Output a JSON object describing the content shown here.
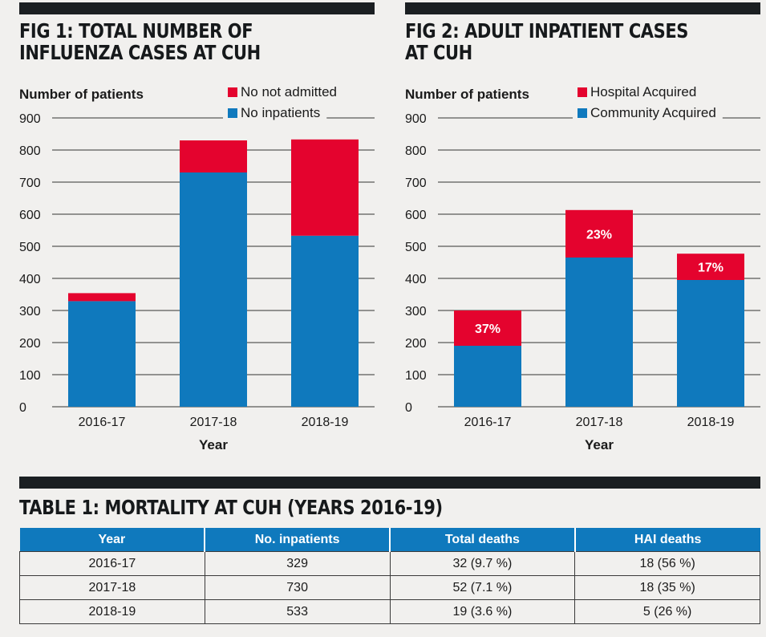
{
  "fig1": {
    "title": "FIG 1: TOTAL NUMBER OF\nINFLUENZA CASES AT CUH",
    "ylabel": "Number of patients",
    "legend": [
      {
        "label": "No not admitted",
        "color": "#e4032e"
      },
      {
        "label": "No inpatients",
        "color": "#0f79bd"
      }
    ]
  },
  "fig2": {
    "title": "FIG 2: ADULT INPATIENT CASES\nAT CUH",
    "ylabel": "Number of patients",
    "legend": [
      {
        "label": "Hospital Acquired",
        "color": "#e4032e"
      },
      {
        "label": "Community Acquired",
        "color": "#0f79bd"
      }
    ]
  },
  "colors": {
    "red": "#e4032e",
    "blue": "#0f79bd",
    "dark": "#1b1f22"
  },
  "chart_data": [
    {
      "type": "bar",
      "stacked": true,
      "title": "FIG 1: TOTAL NUMBER OF INFLUENZA CASES AT CUH",
      "xlabel": "Year",
      "ylabel": "Number of patients",
      "ylim": [
        0,
        900
      ],
      "yticks": [
        0,
        100,
        200,
        300,
        400,
        500,
        600,
        700,
        800,
        900
      ],
      "categories": [
        "2016-17",
        "2017-18",
        "2018-19"
      ],
      "series": [
        {
          "name": "No inpatients",
          "values": [
            329,
            730,
            533
          ],
          "color": "#0f79bd"
        },
        {
          "name": "No not admitted",
          "values": [
            25,
            100,
            300
          ],
          "color": "#e4032e"
        }
      ],
      "legend_position": "top-right",
      "grid": true
    },
    {
      "type": "bar",
      "stacked": true,
      "title": "FIG 2: ADULT INPATIENT CASES AT CUH",
      "xlabel": "Year",
      "ylabel": "Number of patients",
      "ylim": [
        0,
        900
      ],
      "yticks": [
        0,
        100,
        200,
        300,
        400,
        500,
        600,
        700,
        800,
        900
      ],
      "categories": [
        "2016-17",
        "2017-18",
        "2018-19"
      ],
      "series": [
        {
          "name": "Community Acquired",
          "values": [
            190,
            465,
            395
          ],
          "color": "#0f79bd"
        },
        {
          "name": "Hospital Acquired",
          "values": [
            110,
            148,
            82
          ],
          "color": "#e4032e"
        }
      ],
      "annotations": [
        "37%",
        "23%",
        "17%"
      ],
      "legend_position": "top-right",
      "grid": true
    }
  ],
  "table1": {
    "title": "TABLE 1: MORTALITY AT CUH (YEARS 2016-19)",
    "headers": [
      "Year",
      "No. inpatients",
      "Total deaths",
      "HAI deaths"
    ],
    "rows": [
      [
        "2016-17",
        "329",
        "32 (9.7 %)",
        "18 (56 %)"
      ],
      [
        "2017-18",
        "730",
        "52 (7.1 %)",
        "18 (35 %)"
      ],
      [
        "2018-19",
        "533",
        "19 (3.6 %)",
        "5 (26 %)"
      ]
    ]
  }
}
